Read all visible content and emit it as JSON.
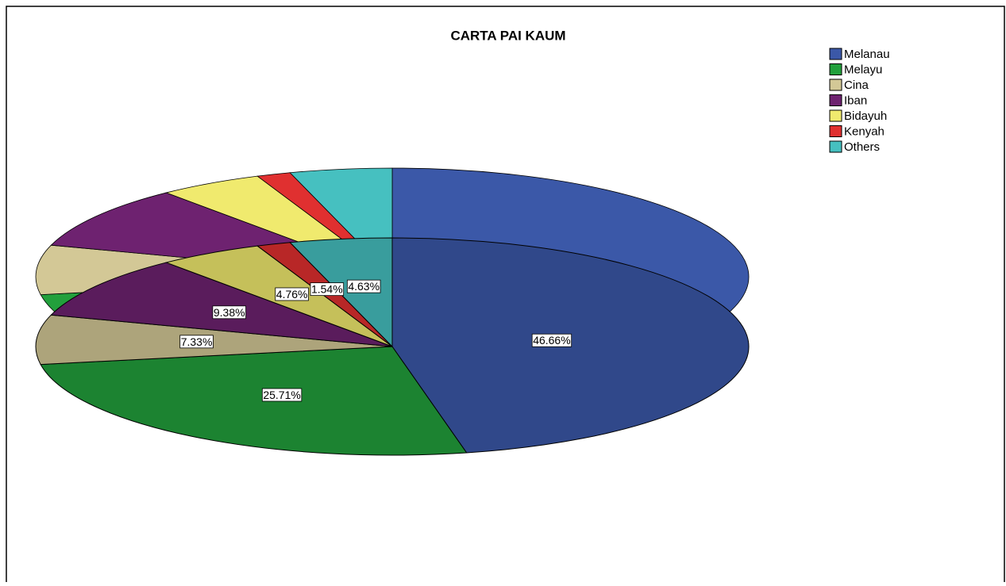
{
  "chart_data": {
    "type": "pie",
    "title": "CARTA PAI KAUM",
    "categories": [
      "Melanau",
      "Melayu",
      "Cina",
      "Iban",
      "Bidayuh",
      "Kenyah",
      "Others"
    ],
    "values": [
      46.66,
      25.71,
      7.33,
      9.38,
      4.76,
      1.54,
      4.63
    ],
    "value_labels": [
      "46.66%",
      "25.71%",
      "7.33%",
      "9.38%",
      "4.76%",
      "1.54%",
      "4.63%"
    ],
    "colors": [
      "#3b58a8",
      "#22a03c",
      "#d3c896",
      "#6e2270",
      "#f0ea6e",
      "#e03030",
      "#46c0c0"
    ],
    "legend": "upper right"
  }
}
